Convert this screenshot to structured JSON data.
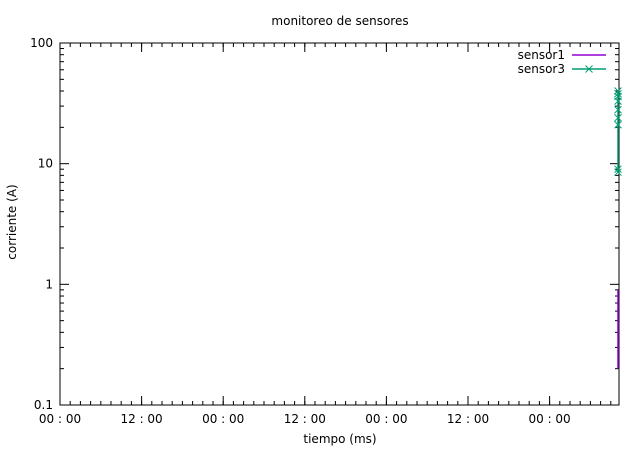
{
  "chart_data": {
    "type": "line",
    "title": "monitoreo de sensores",
    "xlabel": "tiempo (ms)",
    "ylabel": "corriente (A)",
    "y_scale": "log",
    "ylim": [
      0.1,
      100
    ],
    "y_ticks": [
      {
        "value": 0.1,
        "label": "0.1"
      },
      {
        "value": 1,
        "label": "1"
      },
      {
        "value": 10,
        "label": "10"
      },
      {
        "value": 100,
        "label": "100"
      }
    ],
    "x_tick_labels": [
      "00 : 00",
      "12 : 00",
      "00 : 00",
      "12 : 00",
      "00 : 00",
      "12 : 00",
      "00 : 00"
    ],
    "grid": false,
    "legend_position": "top-right",
    "series": [
      {
        "name": "sensor1",
        "color": "#9400d3",
        "marker": "none",
        "values": [
          0.2,
          0.9
        ]
      },
      {
        "name": "sensor3",
        "color": "#009e73",
        "marker": "x",
        "values": [
          8.5,
          9,
          21,
          24,
          28,
          33,
          36,
          38,
          40
        ]
      }
    ]
  }
}
